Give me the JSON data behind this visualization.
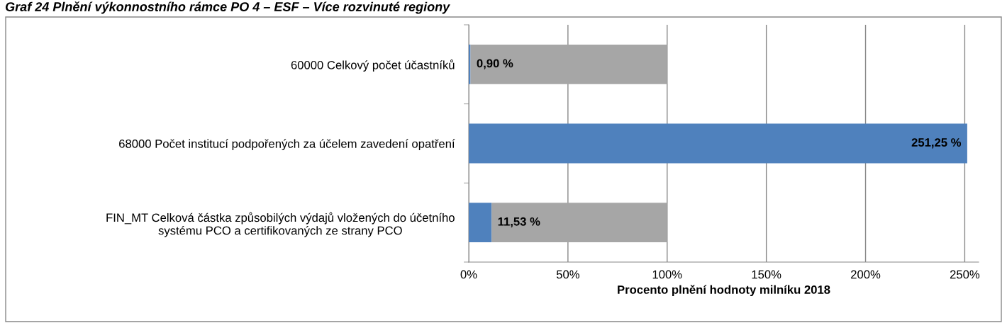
{
  "chart_data": {
    "type": "bar",
    "orientation": "horizontal",
    "stacked": true,
    "title": "Graf 24 Plnění výkonnostního rámce PO 4 – ESF – Více rozvinuté regiony",
    "xlabel": "Procento plnění hodnoty milníku 2018",
    "categories": [
      "60000 Celkový počet účastníků",
      "68000 Počet institucí podpořených za účelem zavedení opatření",
      "FIN_MT Celková částka způsobilých výdajů vložených do účetního\nsystému PCO a certifikovaných ze strany PCO"
    ],
    "series": [
      {
        "color": "#4f81bd",
        "values": [
          0.9,
          251.25,
          11.53
        ],
        "value_labels": [
          "0,90 %",
          "251,25 %",
          "11,53 %"
        ]
      },
      {
        "color": "#a6a6a6",
        "values": [
          99.1,
          0,
          88.47
        ]
      }
    ],
    "xlim": [
      0,
      257
    ],
    "xticks": [
      {
        "value": 0,
        "label": "0%"
      },
      {
        "value": 50,
        "label": "50%"
      },
      {
        "value": 100,
        "label": "100%"
      },
      {
        "value": 150,
        "label": "150%"
      },
      {
        "value": 200,
        "label": "200%"
      },
      {
        "value": 250,
        "label": "250%"
      }
    ],
    "grid": "x",
    "legend": false
  }
}
